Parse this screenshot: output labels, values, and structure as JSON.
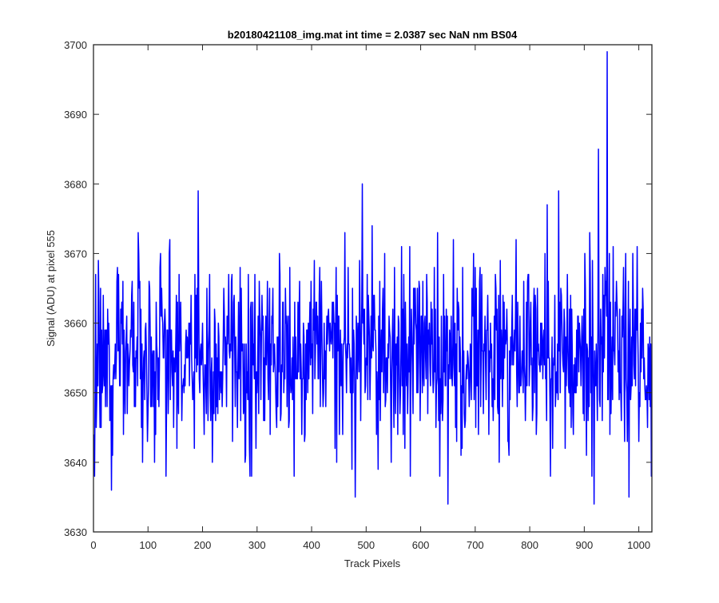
{
  "chart_data": {
    "type": "line",
    "title": "b20180421108_img.mat int time = 2.0387 sec  NaN nm BS04",
    "xlabel": "Track Pixels",
    "ylabel": "Signal (ADU) at pixel 555",
    "xlim": [
      0,
      1024
    ],
    "ylim": [
      3630,
      3700
    ],
    "xticks": [
      0,
      100,
      200,
      300,
      400,
      500,
      600,
      700,
      800,
      900,
      1000
    ],
    "yticks": [
      3630,
      3640,
      3650,
      3660,
      3670,
      3680,
      3690,
      3700
    ],
    "grid": false,
    "legend": "none",
    "series": [
      {
        "color": "#0000ff",
        "x_start": 1,
        "x_step": 1,
        "y_baseline": 3656,
        "y_noise_std": 7,
        "n_points": 1024,
        "notable_points": [
          {
            "x": 33,
            "y": 3636
          },
          {
            "x": 112,
            "y": 3640
          },
          {
            "x": 192,
            "y": 3679
          },
          {
            "x": 287,
            "y": 3638
          },
          {
            "x": 480,
            "y": 3635
          },
          {
            "x": 493,
            "y": 3680
          },
          {
            "x": 650,
            "y": 3634
          },
          {
            "x": 918,
            "y": 3634
          },
          {
            "x": 926,
            "y": 3685
          },
          {
            "x": 942,
            "y": 3699
          },
          {
            "x": 982,
            "y": 3635
          }
        ]
      }
    ]
  }
}
